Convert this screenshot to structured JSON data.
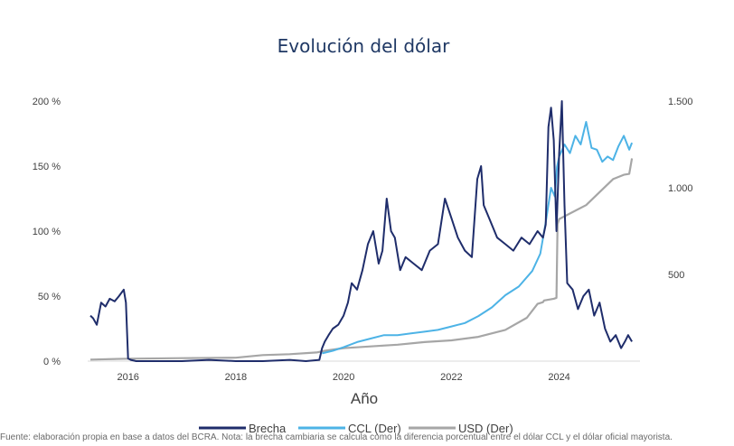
{
  "chart_data": {
    "type": "line",
    "title": "Evolución del dólar",
    "xlabel": "Año",
    "x_ticks": [
      "2016",
      "2018",
      "2020",
      "2022",
      "2024"
    ],
    "x_range": [
      2015.25,
      2025.5
    ],
    "y_left_ticks": [
      "0 %",
      "50 %",
      "100 %",
      "150 %",
      "200 %"
    ],
    "y_left_range": [
      0,
      200
    ],
    "y_right_ticks": [
      "500",
      "1.000",
      "1.500"
    ],
    "y_right_range": [
      0,
      1500
    ],
    "grid": false,
    "legend_position": "bottom",
    "series": [
      {
        "name": "Brecha",
        "axis": "left",
        "color": "#1f2d6b",
        "x": [
          2015.3,
          2015.35,
          2015.42,
          2015.5,
          2015.58,
          2015.66,
          2015.75,
          2015.83,
          2015.92,
          2015.96,
          2016.0,
          2016.05,
          2016.15,
          2016.5,
          2017.0,
          2017.5,
          2018.0,
          2018.5,
          2019.0,
          2019.3,
          2019.55,
          2019.6,
          2019.65,
          2019.72,
          2019.8,
          2019.9,
          2020.0,
          2020.08,
          2020.15,
          2020.25,
          2020.35,
          2020.45,
          2020.55,
          2020.65,
          2020.72,
          2020.8,
          2020.88,
          2020.95,
          2021.05,
          2021.15,
          2021.3,
          2021.45,
          2021.6,
          2021.75,
          2021.88,
          2022.0,
          2022.12,
          2022.25,
          2022.38,
          2022.48,
          2022.55,
          2022.6,
          2022.7,
          2022.85,
          2023.0,
          2023.15,
          2023.3,
          2023.45,
          2023.6,
          2023.7,
          2023.75,
          2023.8,
          2023.85,
          2023.9,
          2023.95,
          2024.0,
          2024.05,
          2024.1,
          2024.15,
          2024.25,
          2024.35,
          2024.45,
          2024.55,
          2024.65,
          2024.75,
          2024.85,
          2024.95,
          2025.05,
          2025.15,
          2025.22,
          2025.28,
          2025.35
        ],
        "y": [
          35,
          33,
          28,
          45,
          42,
          48,
          46,
          50,
          55,
          45,
          2,
          1,
          0,
          0,
          0,
          1,
          0,
          0,
          1,
          0,
          1,
          10,
          15,
          20,
          25,
          28,
          35,
          45,
          60,
          55,
          70,
          90,
          100,
          75,
          85,
          125,
          100,
          95,
          70,
          80,
          75,
          70,
          85,
          90,
          125,
          110,
          95,
          85,
          80,
          140,
          150,
          120,
          110,
          95,
          90,
          85,
          95,
          90,
          100,
          95,
          105,
          180,
          195,
          170,
          100,
          160,
          200,
          120,
          60,
          55,
          40,
          50,
          55,
          35,
          45,
          25,
          15,
          20,
          10,
          15,
          20,
          15
        ]
      },
      {
        "name": "CCL (Der)",
        "axis": "right",
        "color": "#4db3e6",
        "x": [
          2019.6,
          2019.8,
          2020.0,
          2020.25,
          2020.5,
          2020.75,
          2021.0,
          2021.25,
          2021.5,
          2021.75,
          2022.0,
          2022.25,
          2022.5,
          2022.75,
          2023.0,
          2023.25,
          2023.5,
          2023.65,
          2023.75,
          2023.85,
          2023.92,
          2023.96,
          2024.0,
          2024.1,
          2024.2,
          2024.3,
          2024.4,
          2024.5,
          2024.6,
          2024.7,
          2024.8,
          2024.9,
          2025.0,
          2025.1,
          2025.2,
          2025.3,
          2025.35
        ],
        "y": [
          45,
          60,
          80,
          110,
          130,
          150,
          150,
          160,
          170,
          180,
          200,
          220,
          260,
          310,
          380,
          430,
          520,
          620,
          800,
          1000,
          950,
          1120,
          1180,
          1250,
          1200,
          1300,
          1250,
          1380,
          1230,
          1220,
          1150,
          1180,
          1160,
          1240,
          1300,
          1220,
          1260
        ]
      },
      {
        "name": "USD (Der)",
        "axis": "right",
        "color": "#a6a6a6",
        "x": [
          2015.3,
          2016.0,
          2017.0,
          2018.0,
          2018.5,
          2019.0,
          2019.5,
          2019.65,
          2020.0,
          2020.5,
          2021.0,
          2021.5,
          2022.0,
          2022.5,
          2023.0,
          2023.4,
          2023.6,
          2023.7,
          2023.72,
          2023.9,
          2023.95,
          2023.97,
          2024.0,
          2024.5,
          2025.0,
          2025.2,
          2025.3,
          2025.35
        ],
        "y": [
          9,
          14,
          17,
          20,
          35,
          40,
          50,
          60,
          75,
          85,
          95,
          110,
          120,
          140,
          180,
          250,
          330,
          340,
          350,
          360,
          365,
          790,
          820,
          900,
          1050,
          1075,
          1080,
          1170
        ]
      }
    ]
  },
  "footnote": "Fuente: elaboración propia en base a datos del BCRA. Nota: la brecha cambiaria se calcula como la diferencia porcentual entre el dólar CCL y el dólar oficial mayorista."
}
